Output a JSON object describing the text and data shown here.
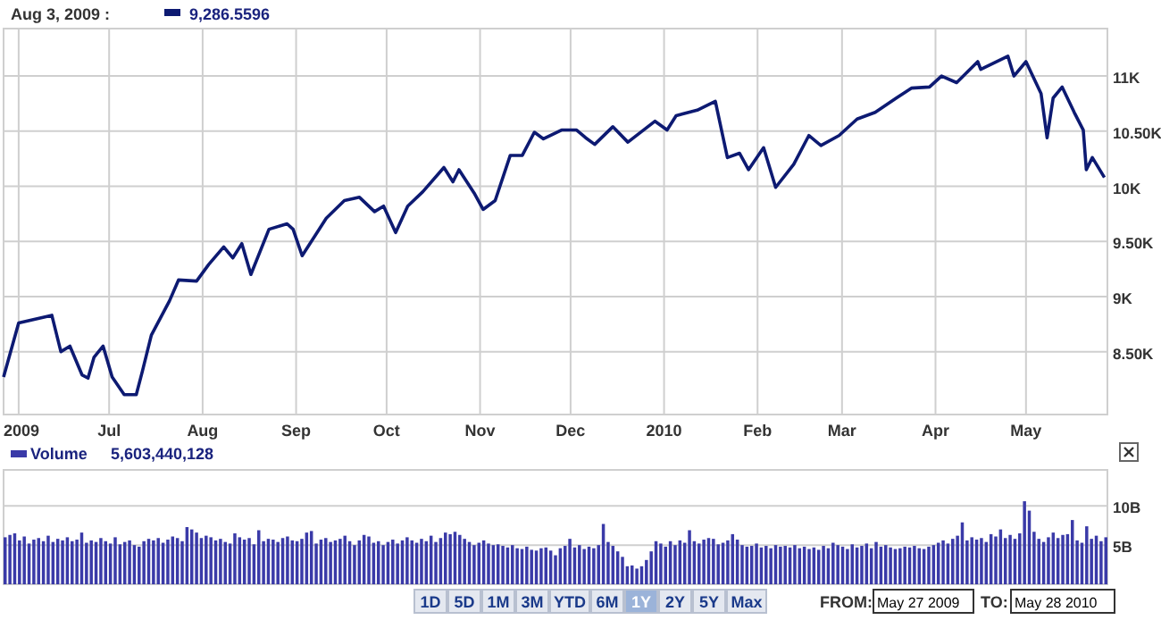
{
  "chart_data": [
    {
      "type": "line",
      "title": "Aug 3, 2009 :",
      "annotations": [
        "9,286.5596"
      ],
      "grid": true,
      "xlim": [
        "2009-05-27",
        "2010-05-28"
      ],
      "xticks": [
        {
          "value": "2009-06-01",
          "label": "2009"
        },
        {
          "value": "2009-07-01",
          "label": "Jul"
        },
        {
          "value": "2009-08-01",
          "label": "Aug"
        },
        {
          "value": "2009-09-01",
          "label": "Sep"
        },
        {
          "value": "2009-10-01",
          "label": "Oct"
        },
        {
          "value": "2009-11-01",
          "label": "Nov"
        },
        {
          "value": "2009-12-01",
          "label": "Dec"
        },
        {
          "value": "2010-01-01",
          "label": "2010"
        },
        {
          "value": "2010-02-01",
          "label": "Feb"
        },
        {
          "value": "2010-03-01",
          "label": "Mar"
        },
        {
          "value": "2010-04-01",
          "label": "Apr"
        },
        {
          "value": "2010-05-01",
          "label": "May"
        }
      ],
      "ylim": [
        7930,
        11430
      ],
      "yticks": [
        {
          "value": 8500,
          "label": "8.50K"
        },
        {
          "value": 9000,
          "label": "9K"
        },
        {
          "value": 9500,
          "label": "9.50K"
        },
        {
          "value": 10000,
          "label": "10K"
        },
        {
          "value": 10500,
          "label": "10.50K"
        },
        {
          "value": 11000,
          "label": "11K"
        }
      ],
      "x": [
        "2009-05-27",
        "2009-06-01",
        "2009-06-12",
        "2009-06-15",
        "2009-06-18",
        "2009-06-22",
        "2009-06-24",
        "2009-06-26",
        "2009-06-29",
        "2009-07-02",
        "2009-07-06",
        "2009-07-10",
        "2009-07-12",
        "2009-07-15",
        "2009-07-21",
        "2009-07-24",
        "2009-07-30",
        "2009-08-03",
        "2009-08-08",
        "2009-08-11",
        "2009-08-14",
        "2009-08-17",
        "2009-08-23",
        "2009-08-29",
        "2009-08-31",
        "2009-09-03",
        "2009-09-11",
        "2009-09-17",
        "2009-09-22",
        "2009-09-27",
        "2009-09-30",
        "2009-10-04",
        "2009-10-08",
        "2009-10-13",
        "2009-10-20",
        "2009-10-23",
        "2009-10-25",
        "2009-10-30",
        "2009-11-02",
        "2009-11-06",
        "2009-11-11",
        "2009-11-15",
        "2009-11-19",
        "2009-11-22",
        "2009-11-28",
        "2009-12-03",
        "2009-12-06",
        "2009-12-09",
        "2009-12-15",
        "2009-12-20",
        "2009-12-29",
        "2010-01-02",
        "2010-01-05",
        "2010-01-12",
        "2010-01-18",
        "2010-01-22",
        "2010-01-26",
        "2010-01-29",
        "2010-02-03",
        "2010-02-07",
        "2010-02-13",
        "2010-02-18",
        "2010-02-22",
        "2010-02-28",
        "2010-03-06",
        "2010-03-12",
        "2010-03-19",
        "2010-03-24",
        "2010-03-30",
        "2010-04-03",
        "2010-04-08",
        "2010-04-15",
        "2010-04-16",
        "2010-04-25",
        "2010-04-27",
        "2010-05-01",
        "2010-05-06",
        "2010-05-08",
        "2010-05-10",
        "2010-05-13",
        "2010-05-17",
        "2010-05-20",
        "2010-05-21",
        "2010-05-23",
        "2010-05-27"
      ],
      "series": [
        {
          "color": "#0d1a72",
          "values": [
            8270,
            8760,
            8830,
            8500,
            8550,
            8290,
            8260,
            8450,
            8550,
            8270,
            8110,
            8110,
            8320,
            8650,
            8960,
            9150,
            9140,
            9290,
            9450,
            9350,
            9480,
            9200,
            9610,
            9660,
            9610,
            9370,
            9710,
            9870,
            9900,
            9770,
            9820,
            9580,
            9820,
            9950,
            10170,
            10040,
            10150,
            9940,
            9790,
            9870,
            10280,
            10280,
            10490,
            10430,
            10510,
            10510,
            10440,
            10380,
            10540,
            10400,
            10590,
            10510,
            10640,
            10690,
            10770,
            10260,
            10300,
            10150,
            10350,
            9990,
            10200,
            10460,
            10370,
            10460,
            10610,
            10670,
            10800,
            10890,
            10900,
            11000,
            10940,
            11130,
            11060,
            11180,
            11000,
            11130,
            10840,
            10440,
            10800,
            10900,
            10670,
            10510,
            10150,
            10260,
            10080
          ]
        }
      ]
    },
    {
      "type": "bar",
      "legend": "top left",
      "annotations": [
        "5,603,440,128"
      ],
      "grid": "y",
      "tick_labels": "y",
      "ylim": [
        0,
        14.6
      ],
      "yticks": [
        {
          "value": 5,
          "label": "5B"
        },
        {
          "value": 10,
          "label": "10B"
        }
      ],
      "categories": [
        null,
        null,
        null,
        null,
        null,
        null,
        null,
        null,
        null,
        null,
        null,
        null,
        null,
        null,
        null,
        null,
        null,
        null,
        null,
        null,
        null,
        null,
        null,
        null,
        null,
        null,
        null,
        null,
        null,
        null,
        null,
        null,
        null,
        null,
        null,
        null,
        null,
        null,
        null,
        null,
        null,
        null,
        null,
        null,
        null,
        null,
        null,
        null,
        null,
        null,
        null,
        null,
        null,
        null,
        null,
        null,
        null,
        null,
        null,
        null,
        null,
        null,
        null,
        null,
        null,
        null,
        null,
        null,
        null,
        null,
        null,
        null,
        null,
        null,
        null,
        null,
        null,
        null,
        null,
        null,
        null,
        null,
        null,
        null,
        null,
        null,
        null,
        null,
        null,
        null,
        null,
        null,
        null,
        null,
        null,
        null,
        null,
        null,
        null,
        null,
        null,
        null,
        null,
        null,
        null,
        null,
        null,
        null,
        null,
        null,
        null,
        null,
        null,
        null,
        null,
        null,
        null,
        null,
        null,
        null,
        null,
        null,
        null,
        null,
        null,
        null,
        null,
        null,
        null,
        null,
        null,
        null,
        null,
        null,
        null,
        null,
        null,
        null,
        null,
        null,
        null,
        null,
        null,
        null,
        null,
        null,
        null,
        null,
        null,
        null,
        null,
        null,
        null,
        null,
        null,
        null,
        null,
        null,
        null,
        null,
        null,
        null,
        null,
        null,
        null,
        null,
        null,
        null,
        null,
        null,
        null,
        null,
        null,
        null,
        null,
        null,
        null,
        null,
        null,
        null,
        null,
        null,
        null,
        null,
        null,
        null,
        null,
        null,
        null,
        null,
        null,
        null,
        null,
        null,
        null,
        null,
        null,
        null,
        null,
        null,
        null,
        null,
        null,
        null,
        null,
        null,
        null,
        null,
        null,
        null,
        null,
        null,
        null,
        null,
        null,
        null,
        null,
        null,
        null,
        null,
        null,
        null,
        null,
        null,
        null,
        null,
        null,
        null,
        null,
        null,
        null
      ],
      "series": [
        {
          "name": "Volume",
          "color": "#3a3aa8",
          "values": [
            6.0,
            6.3,
            6.5,
            5.6,
            6.1,
            5.2,
            5.7,
            5.9,
            5.5,
            6.2,
            5.4,
            5.8,
            5.6,
            6.0,
            5.5,
            5.7,
            6.6,
            5.3,
            5.6,
            5.4,
            5.9,
            5.5,
            5.2,
            6.0,
            5.1,
            5.4,
            5.6,
            5.0,
            4.8,
            5.5,
            5.8,
            5.6,
            5.9,
            5.3,
            5.7,
            6.1,
            5.9,
            5.5,
            7.3,
            7.0,
            6.6,
            5.9,
            6.2,
            6.0,
            5.6,
            5.8,
            5.4,
            5.2,
            6.5,
            6.0,
            5.7,
            5.9,
            5.1,
            6.9,
            5.5,
            5.8,
            5.7,
            5.4,
            5.9,
            6.1,
            5.6,
            5.5,
            5.8,
            6.6,
            6.8,
            5.2,
            5.7,
            5.9,
            5.4,
            5.6,
            5.8,
            6.2,
            5.5,
            5.0,
            5.6,
            6.3,
            6.1,
            5.3,
            5.5,
            5.0,
            5.4,
            5.7,
            5.2,
            5.6,
            6.0,
            5.6,
            5.3,
            5.8,
            5.5,
            6.2,
            5.4,
            5.9,
            6.6,
            6.4,
            6.7,
            6.3,
            5.8,
            5.4,
            5.0,
            5.3,
            5.6,
            5.2,
            5.0,
            5.1,
            4.9,
            4.7,
            5.0,
            4.6,
            4.5,
            4.8,
            4.4,
            4.3,
            4.6,
            4.7,
            4.3,
            3.7,
            4.6,
            4.9,
            5.8,
            4.7,
            5.0,
            4.5,
            4.8,
            4.6,
            5.0,
            7.7,
            5.4,
            4.9,
            4.2,
            3.5,
            2.3,
            2.4,
            2.0,
            2.3,
            3.1,
            4.2,
            5.5,
            5.2,
            4.8,
            5.5,
            5.0,
            5.6,
            5.3,
            6.9,
            5.5,
            5.2,
            5.7,
            5.9,
            5.8,
            5.1,
            5.3,
            5.6,
            6.4,
            5.7,
            5.0,
            4.8,
            4.9,
            5.2,
            4.7,
            4.9,
            4.6,
            5.0,
            4.8,
            4.9,
            4.7,
            5.0,
            4.6,
            4.8,
            4.5,
            4.7,
            4.4,
            4.9,
            4.6,
            5.3,
            5.0,
            4.8,
            4.5,
            5.1,
            4.7,
            4.9,
            5.2,
            4.6,
            5.4,
            4.8,
            5.0,
            4.7,
            4.5,
            4.6,
            4.8,
            4.7,
            4.9,
            4.6,
            4.5,
            4.8,
            5.0,
            5.3,
            5.6,
            5.2,
            5.8,
            6.2,
            7.9,
            5.6,
            6.0,
            5.7,
            5.9,
            5.4,
            6.4,
            6.1,
            7.0,
            5.9,
            6.3,
            5.8,
            6.5,
            10.6,
            9.4,
            6.7,
            5.8,
            5.4,
            6.0,
            6.6,
            5.9,
            6.3,
            6.4,
            8.2,
            5.6,
            5.3,
            7.4,
            5.8,
            6.2,
            5.5,
            6.0
          ]
        }
      ]
    },
    {
      "type": "other",
      "annotations": [
        "1D",
        "5D",
        "1M",
        "3M",
        "YTD",
        "6M",
        "1Y",
        "2Y",
        "5Y",
        "Max",
        "FROM:",
        "May 27 2009",
        "TO:",
        "May 28 2010"
      ]
    }
  ]
}
